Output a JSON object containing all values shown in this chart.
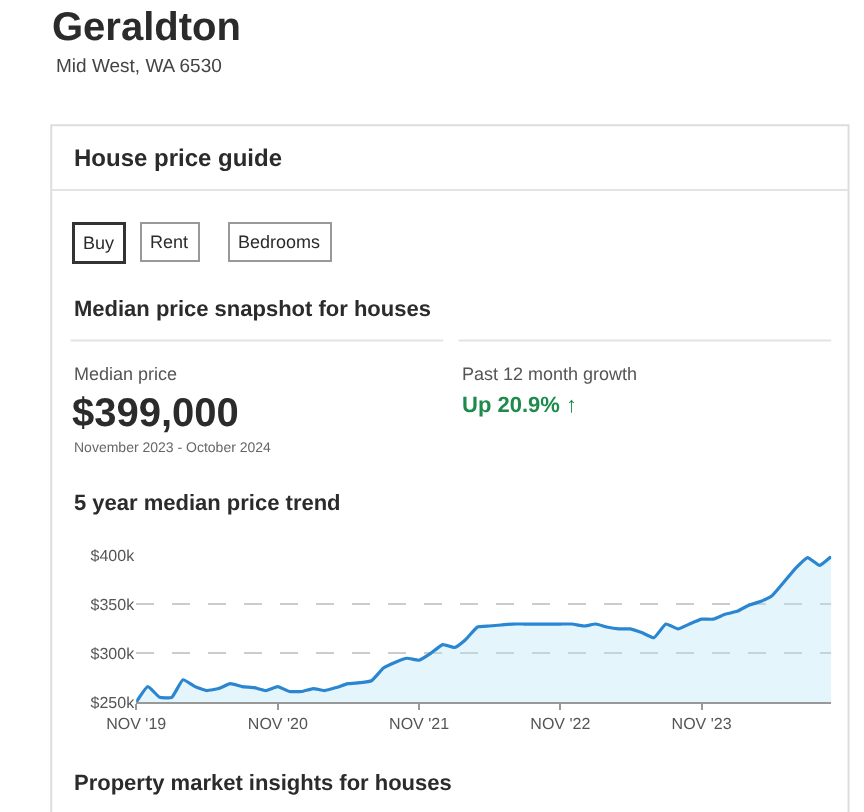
{
  "chart_data": {
    "type": "area",
    "title": "5 year median price trend",
    "annotations": [
      "Geraldton",
      "Mid West, WA 6530",
      "House price guide",
      "Buy",
      "Rent",
      "Bedrooms",
      "Median price snapshot for houses",
      "Median price",
      "$399,000",
      "November 2023 - October 2024",
      "Past 12 month growth",
      "Up 20.9% ↑",
      "Property market insights for houses"
    ],
    "x": [
      "2019-11",
      "2019-12",
      "2020-01",
      "2020-02",
      "2020-03",
      "2020-04",
      "2020-05",
      "2020-06",
      "2020-07",
      "2020-08",
      "2020-09",
      "2020-10",
      "2020-11",
      "2020-12",
      "2021-01",
      "2021-02",
      "2021-03",
      "2021-04",
      "2021-05",
      "2021-06",
      "2021-07",
      "2021-08",
      "2021-09",
      "2021-10",
      "2021-11",
      "2021-12",
      "2022-01",
      "2022-02",
      "2022-03",
      "2022-04",
      "2022-05",
      "2022-06",
      "2022-07",
      "2022-08",
      "2022-09",
      "2022-10",
      "2022-11",
      "2022-12",
      "2023-01",
      "2023-02",
      "2023-03",
      "2023-04",
      "2023-05",
      "2023-06",
      "2023-07",
      "2023-08",
      "2023-09",
      "2023-10",
      "2023-11",
      "2023-12",
      "2024-01",
      "2024-02",
      "2024-03",
      "2024-04",
      "2024-05",
      "2024-06",
      "2024-07",
      "2024-08",
      "2024-09",
      "2024-10"
    ],
    "series": [
      {
        "color": "#2a86d1",
        "values": [
          250,
          266,
          255,
          255,
          273,
          266,
          262,
          264,
          269,
          266,
          265,
          262,
          266,
          261,
          261,
          264,
          262,
          265,
          269,
          270,
          272,
          285,
          291,
          295,
          293,
          300,
          309,
          306,
          314,
          327,
          328,
          329,
          330,
          330,
          330,
          330,
          330,
          330,
          328,
          330,
          327,
          325,
          325,
          321,
          316,
          330,
          325,
          330,
          335,
          335,
          340,
          343,
          349,
          353,
          359,
          373,
          387,
          398,
          390,
          399
        ]
      }
    ],
    "xlim": [
      "2019-11",
      "2024-10"
    ],
    "xticks": [
      {
        "value": "2019-11",
        "label": "NOV '19"
      },
      {
        "value": "2020-11",
        "label": "NOV '20"
      },
      {
        "value": "2021-11",
        "label": "NOV '21"
      },
      {
        "value": "2022-11",
        "label": "NOV '22"
      },
      {
        "value": "2023-11",
        "label": "NOV '23"
      }
    ],
    "ylim": [
      250,
      400
    ],
    "yticks": [
      {
        "value": 250,
        "label": "$250k"
      },
      {
        "value": 300,
        "label": "$300k"
      },
      {
        "value": 350,
        "label": "$350k"
      },
      {
        "value": 400,
        "label": "$400k"
      }
    ],
    "grid": "y",
    "legend": false,
    "marker": "none",
    "line_style": "solid"
  }
}
